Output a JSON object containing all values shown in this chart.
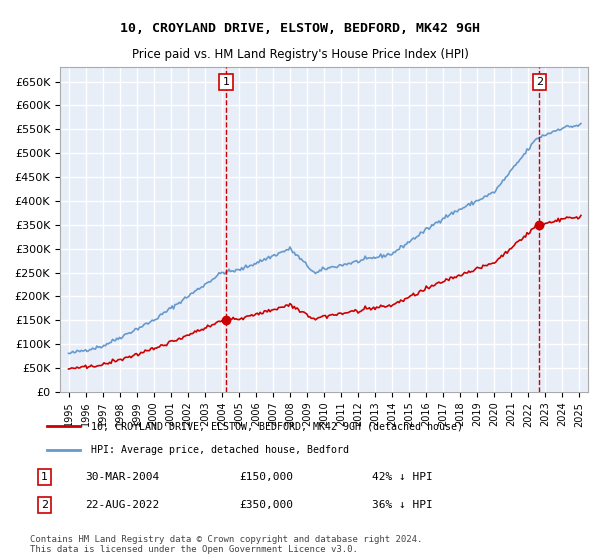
{
  "title1": "10, CROYLAND DRIVE, ELSTOW, BEDFORD, MK42 9GH",
  "title2": "Price paid vs. HM Land Registry's House Price Index (HPI)",
  "legend_line1": "10, CROYLAND DRIVE, ELSTOW, BEDFORD, MK42 9GH (detached house)",
  "legend_line2": "HPI: Average price, detached house, Bedford",
  "footnote": "Contains HM Land Registry data © Crown copyright and database right 2024.\nThis data is licensed under the Open Government Licence v3.0.",
  "sale1_label": "1",
  "sale1_date": "30-MAR-2004",
  "sale1_price": "£150,000",
  "sale1_hpi": "42% ↓ HPI",
  "sale2_label": "2",
  "sale2_date": "22-AUG-2022",
  "sale2_price": "£350,000",
  "sale2_hpi": "36% ↓ HPI",
  "sale1_year": 2004.25,
  "sale1_value": 150000,
  "sale2_year": 2022.65,
  "sale2_value": 350000,
  "hpi_color": "#6699cc",
  "price_color": "#cc0000",
  "sale_marker_color": "#cc0000",
  "vline_color": "#cc0000",
  "bg_color": "#e8eef8",
  "grid_color": "#ffffff",
  "ylim": [
    0,
    680000
  ],
  "xlim_start": 1994.5,
  "xlim_end": 2025.5,
  "yticks": [
    0,
    50000,
    100000,
    150000,
    200000,
    250000,
    300000,
    350000,
    400000,
    450000,
    500000,
    550000,
    600000,
    650000
  ],
  "xticks": [
    1995,
    1996,
    1997,
    1998,
    1999,
    2000,
    2001,
    2002,
    2003,
    2004,
    2005,
    2006,
    2007,
    2008,
    2009,
    2010,
    2011,
    2012,
    2013,
    2014,
    2015,
    2016,
    2017,
    2018,
    2019,
    2020,
    2021,
    2022,
    2023,
    2024,
    2025
  ]
}
